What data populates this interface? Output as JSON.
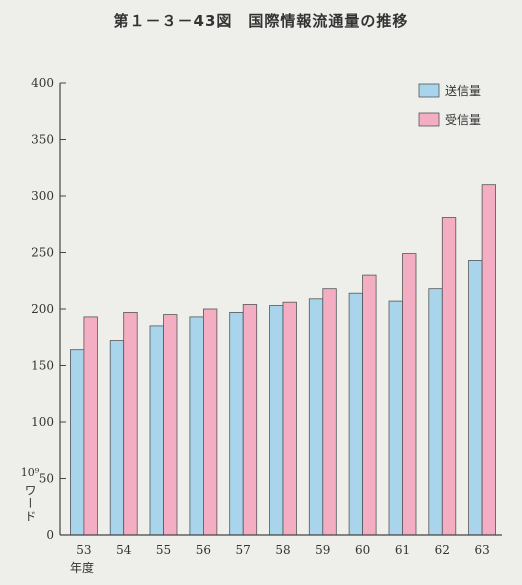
{
  "figure_title": "第１－３－43図　国際情報流通量の推移",
  "colors": {
    "send": "#a8d4ec",
    "recv": "#f4aec4",
    "axis": "#444444"
  },
  "chart_data": {
    "type": "bar",
    "title": "第１－３－43図　国際情報流通量の推移",
    "categories": [
      "53",
      "54",
      "55",
      "56",
      "57",
      "58",
      "59",
      "60",
      "61",
      "62",
      "63"
    ],
    "xlabel": "年度",
    "ylabel_exp": "10⁹",
    "ylabel_unit": "ワード",
    "ylim": [
      0,
      400
    ],
    "yticks": [
      0,
      50,
      100,
      150,
      200,
      250,
      300,
      350,
      400
    ],
    "legend_position": "top-right",
    "grid": false,
    "series": [
      {
        "name": "送信量",
        "values": [
          164,
          172,
          185,
          193,
          197,
          203,
          209,
          214,
          207,
          218,
          243
        ]
      },
      {
        "name": "受信量",
        "values": [
          193,
          197,
          195,
          200,
          204,
          206,
          218,
          230,
          249,
          281,
          310
        ]
      }
    ]
  }
}
